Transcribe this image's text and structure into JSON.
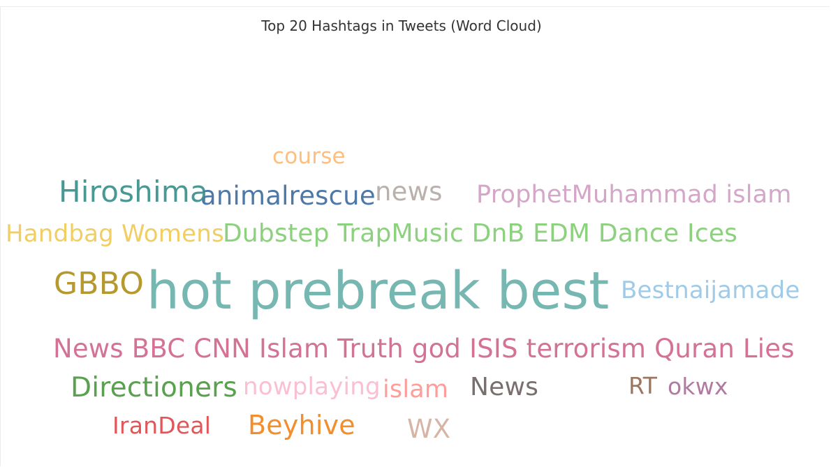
{
  "chart_data": {
    "type": "wordcloud",
    "title": "Top 20 Hashtags in Tweets (Word Cloud)",
    "words": [
      {
        "text": "hot prebreak best",
        "color": "#76b7b2",
        "size_rank": 1
      },
      {
        "text": "News BBC CNN Islam Truth god ISIS terrorism Quran Lies",
        "color": "#d37295",
        "size_rank": 2
      },
      {
        "text": "Dubstep TrapMusic DnB EDM Dance Ices",
        "color": "#8cd17d",
        "size_rank": 3
      },
      {
        "text": "GBBO",
        "color": "#b6992d",
        "size_rank": 4
      },
      {
        "text": "Hiroshima",
        "color": "#499894",
        "size_rank": 5
      },
      {
        "text": "Directioners",
        "color": "#59a14f",
        "size_rank": 6
      },
      {
        "text": "animalrescue",
        "color": "#4e79a7",
        "size_rank": 7
      },
      {
        "text": "news",
        "color": "#bab0ac",
        "size_rank": 8
      },
      {
        "text": "Beyhive",
        "color": "#f28e2b",
        "size_rank": 9
      },
      {
        "text": "Bestnaijamade",
        "color": "#a0cbe8",
        "size_rank": 10
      },
      {
        "text": "ProphetMuhammad islam",
        "color": "#d4a6c8",
        "size_rank": 11
      },
      {
        "text": "Handbag Womens",
        "color": "#f1ce63",
        "size_rank": 12
      },
      {
        "text": "News",
        "color": "#79706e",
        "size_rank": 13
      },
      {
        "text": "islam",
        "color": "#ff9d9a",
        "size_rank": 14
      },
      {
        "text": "WX",
        "color": "#d7b5a6",
        "size_rank": 15
      },
      {
        "text": "course",
        "color": "#ffbe7d",
        "size_rank": 16
      },
      {
        "text": "nowplaying",
        "color": "#fabfd2",
        "size_rank": 17
      },
      {
        "text": "IranDeal",
        "color": "#e15759",
        "size_rank": 18
      },
      {
        "text": "RT",
        "color": "#9d7660",
        "size_rank": 19
      },
      {
        "text": "okwx",
        "color": "#b07aa1",
        "size_rank": 20
      }
    ]
  }
}
